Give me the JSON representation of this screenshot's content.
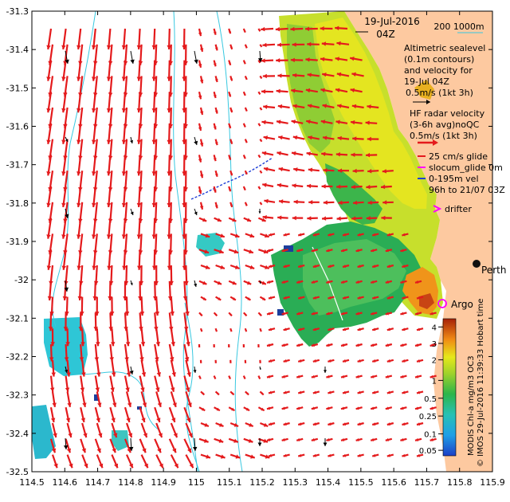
{
  "chart_data": {
    "type": "map",
    "title": "19-Jul-2016",
    "subtitle": "04Z",
    "x_ticks": [
      "114.5",
      "114.6",
      "114.7",
      "114.8",
      "114.9",
      "115",
      "115.1",
      "115.2",
      "115.3",
      "115.4",
      "115.5",
      "115.6",
      "115.7",
      "115.8",
      "115.9"
    ],
    "y_ticks": [
      "-31.3",
      "-31.4",
      "-31.5",
      "-31.6",
      "-31.7",
      "-31.8",
      "-31.9",
      "-32",
      "-32.1",
      "-32.2",
      "-32.3",
      "-32.4",
      "-32.5"
    ],
    "xlim": [
      114.5,
      115.9
    ],
    "ylim": [
      -32.5,
      -31.3
    ],
    "scale_bar": "200   1000m",
    "legend": {
      "altimetric": [
        "Altimetric sealevel",
        "(0.1m contours)",
        "and velocity for",
        "19-Jul 04Z",
        "0.5m/s (1kt 3h)"
      ],
      "hf_radar": [
        "HF radar velocity",
        "(3-6h avg)noQC",
        "0.5m/s (1kt 3h)"
      ],
      "glider": [
        "25 cm/s glide",
        "slocum_glide 0m",
        "0-195m vel",
        "96h to 21/07 03Z"
      ],
      "drifter": "drifter"
    },
    "places": {
      "perth": "Perth",
      "argo": "Argo"
    },
    "colorbar": {
      "ticks": [
        "4",
        "3",
        "2",
        "1",
        "0.5",
        "0.25",
        "0.1",
        "0.05"
      ],
      "label": "MODIS Chl-a mg/m3 OC3",
      "credit": "© IMOS 29-Jul-2016 11:39:33 Hobart time"
    },
    "colors": {
      "land": "#fdc9a0",
      "hf_arrow": "#e41a1c",
      "glider": "#1f3fd6",
      "drifter": "#ff00ff",
      "isobath": "#38c8e0"
    }
  }
}
